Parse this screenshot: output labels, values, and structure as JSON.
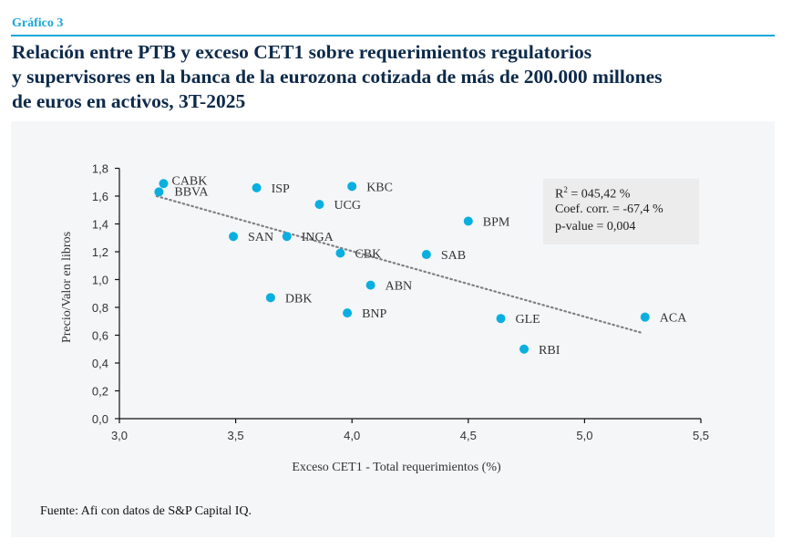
{
  "header": {
    "kicker": "Gráfico 3",
    "title_lines": [
      "Relación entre PTB y exceso CET1 sobre requerimientos regulatorios",
      "y supervisores en la banca de la eurozona cotizada de más de 200.000 millones",
      "de euros en activos, 3T-2025"
    ]
  },
  "footer": {
    "source": "Fuente: Afi con datos de S&P Capital IQ."
  },
  "colors": {
    "accent": "#1aa7d6",
    "title": "#0d2a4a",
    "point": "#0aafe0",
    "trend": "#808080",
    "panel": "#f4f6f8"
  },
  "stats_box": {
    "r2_prefix": "R",
    "r2_sup": "2",
    "r2_value": " = 045,42 %",
    "corr": "Coef. corr. = -67,4 %",
    "pvalue": "p-value = 0,004"
  },
  "chart_data": {
    "type": "scatter",
    "title": "Relación entre PTB y exceso CET1 sobre requerimientos regulatorios y supervisores en la banca de la eurozona cotizada de más de 200.000 millones de euros en activos, 3T-2025",
    "xlabel": "Exceso CET1 - Total requerimientos (%)",
    "ylabel": "Precio/Valor en libros",
    "xlim": [
      3.0,
      5.5
    ],
    "ylim": [
      0.0,
      1.8
    ],
    "xticks": [
      3.0,
      3.5,
      4.0,
      4.5,
      5.0,
      5.5
    ],
    "xtick_labels": [
      "3,0",
      "3,5",
      "4,0",
      "4,5",
      "5,0",
      "5,5"
    ],
    "yticks": [
      0.0,
      0.2,
      0.4,
      0.6,
      0.8,
      1.0,
      1.2,
      1.4,
      1.6,
      1.8
    ],
    "ytick_labels": [
      "0,0",
      "0,2",
      "0,4",
      "0,6",
      "0,8",
      "1,0",
      "1,2",
      "1,4",
      "1,6",
      "1,8"
    ],
    "grid": false,
    "legend": "none",
    "points": [
      {
        "label": "CABK",
        "x": 3.19,
        "y": 1.69
      },
      {
        "label": "BBVA",
        "x": 3.17,
        "y": 1.63
      },
      {
        "label": "ISP",
        "x": 3.59,
        "y": 1.66
      },
      {
        "label": "KBC",
        "x": 4.0,
        "y": 1.67
      },
      {
        "label": "UCG",
        "x": 3.86,
        "y": 1.54
      },
      {
        "label": "BPM",
        "x": 4.5,
        "y": 1.42
      },
      {
        "label": "SAN",
        "x": 3.49,
        "y": 1.31
      },
      {
        "label": "INGA",
        "x": 3.72,
        "y": 1.31
      },
      {
        "label": "CBK",
        "x": 3.95,
        "y": 1.19
      },
      {
        "label": "SAB",
        "x": 4.32,
        "y": 1.18
      },
      {
        "label": "ABN",
        "x": 4.08,
        "y": 0.96
      },
      {
        "label": "DBK",
        "x": 3.65,
        "y": 0.87
      },
      {
        "label": "BNP",
        "x": 3.98,
        "y": 0.76
      },
      {
        "label": "GLE",
        "x": 4.64,
        "y": 0.72
      },
      {
        "label": "ACA",
        "x": 5.26,
        "y": 0.73
      },
      {
        "label": "RBI",
        "x": 4.74,
        "y": 0.5
      }
    ],
    "trendline": {
      "style": "dotted",
      "x": [
        3.16,
        5.24
      ],
      "y": [
        1.6,
        0.62
      ]
    },
    "annotations": [
      "R² = 045,42 %",
      "Coef. corr. = -67,4 %",
      "p-value = 0,004"
    ]
  }
}
